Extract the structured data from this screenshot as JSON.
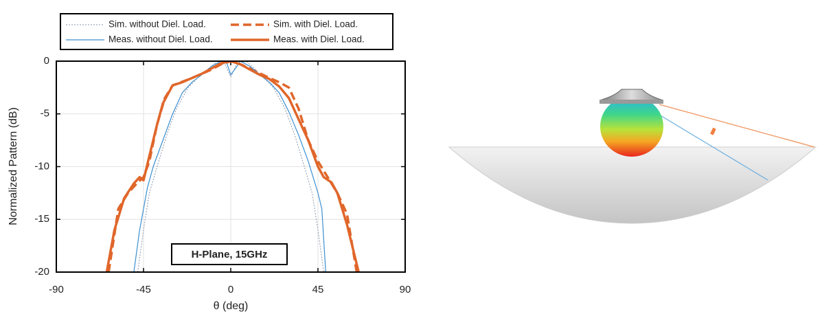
{
  "chart_data": {
    "type": "line",
    "x_label": "θ (deg)",
    "y_label": "Normalized Pattern (dB)",
    "annotation": "H-Plane, 15GHz",
    "xlim": [
      -90,
      90
    ],
    "xticks": [
      -90,
      -45,
      0,
      45,
      90
    ],
    "ylim": [
      -20,
      0
    ],
    "yticks": [
      -20,
      -15,
      -10,
      -5,
      0
    ],
    "grid": true,
    "series": [
      {
        "name": "Sim. without Diel. Load.",
        "color": "#8a94a8",
        "line_style": "dotted",
        "x": [
          -48,
          -45,
          -42,
          -38,
          -33,
          -28,
          -22,
          -15,
          -8,
          -3,
          0,
          3,
          8,
          15,
          22,
          28,
          33,
          38,
          42,
          45,
          48
        ],
        "values": [
          -20,
          -16,
          -12.5,
          -10,
          -7,
          -4.5,
          -2.5,
          -1.2,
          -0.2,
          -0.3,
          -1.5,
          -0.3,
          0,
          -1.2,
          -2.5,
          -4.5,
          -7,
          -10,
          -12.5,
          -16,
          -20
        ]
      },
      {
        "name": "Sim. with Diel. Load.",
        "color": "#e0662a",
        "line_style": "dashed",
        "x": [
          -63,
          -58,
          -53,
          -48,
          -45,
          -42,
          -38,
          -34,
          -30,
          -20,
          -10,
          -5,
          0,
          5,
          10,
          20,
          25,
          30,
          35,
          40,
          45,
          50,
          55,
          60,
          65
        ],
        "values": [
          -20,
          -14,
          -12.5,
          -11.5,
          -11,
          -9.5,
          -6,
          -3.5,
          -2.3,
          -1.6,
          -0.8,
          -0.3,
          0,
          -0.3,
          -0.7,
          -1.6,
          -2,
          -2.5,
          -4.5,
          -7.5,
          -9.5,
          -11,
          -12.5,
          -14.5,
          -20
        ]
      },
      {
        "name": "Meas. without Diel. Load.",
        "color": "#3a8fd0",
        "line_style": "thin",
        "x": [
          -50,
          -47,
          -43,
          -40,
          -35,
          -30,
          -25,
          -20,
          -15,
          -10,
          -5,
          -2,
          0,
          2,
          5,
          10,
          15,
          20,
          25,
          30,
          35,
          40,
          45,
          47,
          49
        ],
        "values": [
          -20,
          -16,
          -12,
          -10,
          -7.5,
          -5,
          -3,
          -2,
          -1.3,
          -0.5,
          0,
          -0.2,
          -1.3,
          -0.8,
          0,
          -0.5,
          -1.3,
          -2,
          -3,
          -4.8,
          -7,
          -9.5,
          -12.5,
          -14,
          -20
        ]
      },
      {
        "name": "Meas. with Diel. Load.",
        "color": "#e0662a",
        "line_style": "thick",
        "x": [
          -64,
          -60,
          -55,
          -50,
          -47,
          -45,
          -42,
          -38,
          -35,
          -30,
          -25,
          -20,
          -15,
          -10,
          -5,
          0,
          5,
          10,
          15,
          20,
          25,
          30,
          35,
          40,
          43,
          45,
          48,
          52,
          55,
          60,
          64,
          66
        ],
        "values": [
          -20,
          -16,
          -13,
          -11.6,
          -11,
          -11.3,
          -9,
          -6,
          -4,
          -2.3,
          -2,
          -1.6,
          -1.2,
          -0.7,
          -0.2,
          0,
          -0.3,
          -0.8,
          -1.3,
          -1.7,
          -2.4,
          -3.5,
          -5.5,
          -7.5,
          -9,
          -10,
          -11,
          -11.5,
          -12.5,
          -15.5,
          -18.5,
          -20
        ]
      }
    ]
  }
}
